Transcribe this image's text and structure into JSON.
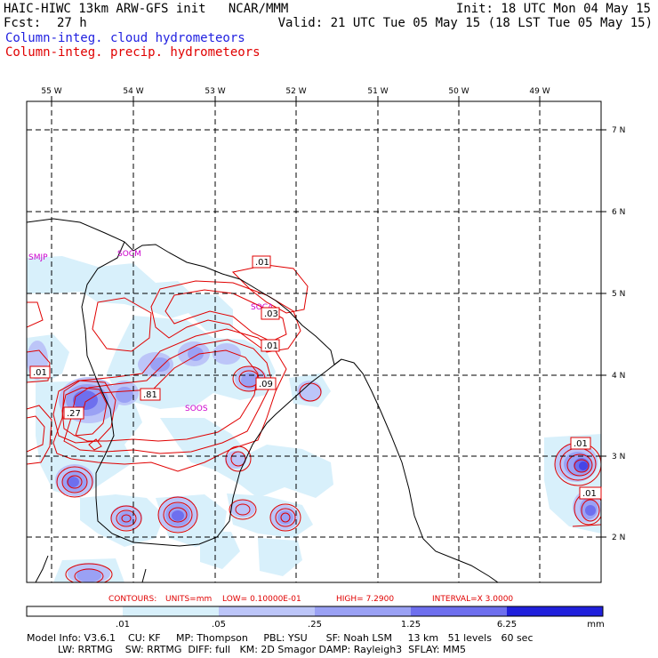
{
  "header": {
    "model_line": "HAIC-HIWC 13km ARW-GFS init   NCAR/MMM",
    "init_line": "Init: 18 UTC Mon 04 May 15",
    "fcst_label": "Fcst:",
    "fcst_value": "27 h",
    "valid_line": "Valid: 21 UTC Tue 05 May 15 (18 LST Tue 05 May 15)",
    "field_cloud": "Column-integ. cloud hydrometeors",
    "field_precip": "Column-integ. precip. hydrometeors"
  },
  "map": {
    "lon_labels": [
      "55 W",
      "54 W",
      "53 W",
      "52 W",
      "51 W",
      "50 W",
      "49 W"
    ],
    "lat_labels": [
      "7 N",
      "6 N",
      "5 N",
      "4 N",
      "3 N",
      "2 N"
    ],
    "stations": [
      "SMJP",
      "SOCM",
      "SOCA",
      "SOOS"
    ],
    "contour_labels": [
      ".01",
      ".03",
      ".01",
      ".09",
      ".81",
      ".27",
      ".01",
      ".01",
      ".01"
    ]
  },
  "contours_line": {
    "contours": "CONTOURS:",
    "units": "UNITS=mm",
    "low": "LOW= 0.10000E-01",
    "high": "HIGH=  7.2900",
    "interval": "INTERVAL=X  3.0000"
  },
  "colorbar": {
    "ticks": [
      ".01",
      ".05",
      ".25",
      "1.25",
      "6.25"
    ],
    "unit": "mm",
    "colors": [
      "#ffffff",
      "#d8f0fb",
      "#bcc5f8",
      "#9aa1f4",
      "#6e6fee",
      "#4445e7",
      "#2020dc"
    ]
  },
  "footer": {
    "line1": "Model Info: V3.6.1    CU: KF     MP: Thompson     PBL: YSU      SF: Noah LSM     13 km   51 levels   60 sec",
    "line2": "          LW: RRTMG    SW: RRTMG  DIFF: full   KM: 2D Smagor DAMP: Rayleigh3  SFLAY: MM5"
  }
}
